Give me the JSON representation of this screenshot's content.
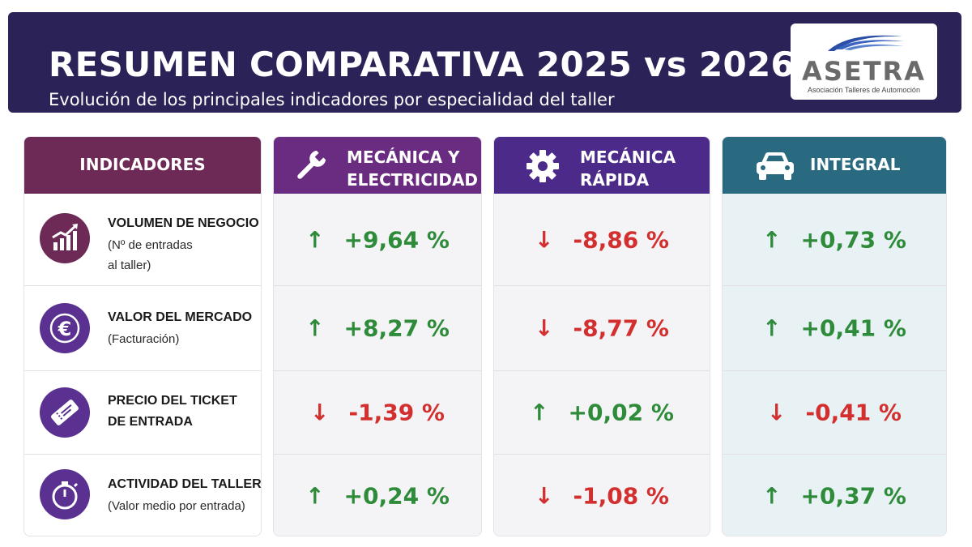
{
  "header": {
    "title": "RESUMEN COMPARATIVA 2025 vs 2026",
    "subtitle": "Evolución de los principales indicadores por especialidad del taller"
  },
  "logo": {
    "name": "ASETRA",
    "tagline": "Asociación Talleres de Automoción"
  },
  "columns": {
    "indicators": "INDICADORES",
    "mecanica_line1": "MECÁNICA Y",
    "mecanica_line2": "ELECTRICIDAD",
    "rapida_line1": "MECÁNICA",
    "rapida_line2": "RÁPIDA",
    "integral": "INTEGRAL"
  },
  "indicators": [
    {
      "title": "VOLUMEN DE NEGOCIO",
      "desc1": "(Nº de entradas",
      "desc2": "al taller)",
      "icon": "chart-growth-icon"
    },
    {
      "title": "VALOR DEL MERCADO",
      "desc1": "(Facturación)",
      "icon": "euro-icon"
    },
    {
      "title1": "PRECIO DEL TICKET",
      "title2": "DE ENTRADA",
      "icon": "ticket-icon"
    },
    {
      "title": "ACTIVIDAD DEL TALLER",
      "desc1": "(Valor medio por entrada)",
      "icon": "stopwatch-icon"
    }
  ],
  "values": {
    "mecanica": [
      {
        "text": "+9,64 %",
        "dir": "up"
      },
      {
        "text": "+8,27 %",
        "dir": "up"
      },
      {
        "text": "-1,39 %",
        "dir": "down"
      },
      {
        "text": "+0,24 %",
        "dir": "up"
      }
    ],
    "rapida": [
      {
        "text": "-8,86 %",
        "dir": "down"
      },
      {
        "text": "-8,77 %",
        "dir": "down"
      },
      {
        "text": "+0,02 %",
        "dir": "up"
      },
      {
        "text": "-1,08 %",
        "dir": "down"
      }
    ],
    "integral": [
      {
        "text": "+0,73 %",
        "dir": "up"
      },
      {
        "text": "+0,41 %",
        "dir": "up"
      },
      {
        "text": "-0,41 %",
        "dir": "down"
      },
      {
        "text": "+0,37 %",
        "dir": "up"
      }
    ]
  },
  "colors": {
    "header_bg": "#2b2357",
    "indicators_head": "#6e2a57",
    "mecanica_head": "#6a2c80",
    "rapida_head": "#4c2a8a",
    "integral_head": "#2a6a80",
    "up": "#2e8b3a",
    "down": "#d32f2f"
  }
}
